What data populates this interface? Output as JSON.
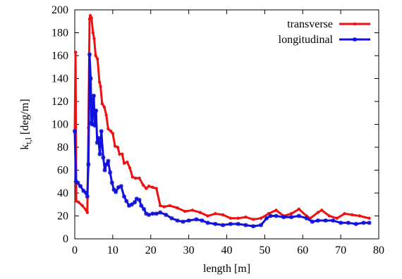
{
  "chart_data": {
    "type": "line",
    "title": "",
    "xlabel": "length [m]",
    "ylabel": "k",
    "ylabel_subscript": "t,l",
    "ylabel_unit": " [deg/m]",
    "xlim": [
      0,
      80
    ],
    "ylim": [
      0,
      200
    ],
    "xticks": [
      0,
      10,
      20,
      30,
      40,
      50,
      60,
      70,
      80
    ],
    "yticks": [
      0,
      20,
      40,
      60,
      80,
      100,
      120,
      140,
      160,
      180,
      200
    ],
    "grid": false,
    "legend_position": "top-right",
    "series": [
      {
        "name": "transverse",
        "color": "#ee1111",
        "marker": "dot",
        "points": [
          [
            0.0,
            94
          ],
          [
            0.2,
            163
          ],
          [
            0.4,
            33
          ],
          [
            1.0,
            32
          ],
          [
            2.0,
            29
          ],
          [
            3.0,
            25
          ],
          [
            3.3,
            23
          ],
          [
            3.6,
            97
          ],
          [
            3.9,
            192
          ],
          [
            4.1,
            195
          ],
          [
            4.4,
            193
          ],
          [
            4.8,
            180
          ],
          [
            5.1,
            175
          ],
          [
            5.5,
            160
          ],
          [
            6.0,
            157
          ],
          [
            6.5,
            137
          ],
          [
            6.8,
            133
          ],
          [
            7.2,
            118
          ],
          [
            7.8,
            115
          ],
          [
            8.3,
            108
          ],
          [
            8.8,
            96
          ],
          [
            9.5,
            94
          ],
          [
            10.0,
            92
          ],
          [
            10.6,
            81
          ],
          [
            11.3,
            80
          ],
          [
            11.8,
            74
          ],
          [
            12.5,
            74
          ],
          [
            13.0,
            66
          ],
          [
            13.8,
            67
          ],
          [
            14.5,
            62
          ],
          [
            15.2,
            54
          ],
          [
            16.0,
            53
          ],
          [
            17.0,
            53
          ],
          [
            18.0,
            47
          ],
          [
            18.8,
            44
          ],
          [
            19.5,
            46
          ],
          [
            20.5,
            45
          ],
          [
            21.5,
            44
          ],
          [
            22.5,
            29
          ],
          [
            23.5,
            28
          ],
          [
            25.0,
            29
          ],
          [
            27.0,
            27
          ],
          [
            29.0,
            24
          ],
          [
            31.0,
            25
          ],
          [
            33.0,
            23
          ],
          [
            35.0,
            20
          ],
          [
            37.0,
            22
          ],
          [
            39.0,
            21
          ],
          [
            41.0,
            18
          ],
          [
            43.0,
            18
          ],
          [
            45.0,
            19
          ],
          [
            47.0,
            17
          ],
          [
            49.0,
            18
          ],
          [
            51.0,
            22
          ],
          [
            53.0,
            25
          ],
          [
            55.0,
            20
          ],
          [
            57.0,
            22
          ],
          [
            59.0,
            26
          ],
          [
            61.0,
            20
          ],
          [
            62.0,
            18
          ],
          [
            64.0,
            23
          ],
          [
            65.0,
            25
          ],
          [
            67.0,
            20
          ],
          [
            69.0,
            18
          ],
          [
            71.0,
            22
          ],
          [
            73.0,
            21
          ],
          [
            75.0,
            20
          ],
          [
            77.5,
            18
          ]
        ]
      },
      {
        "name": "longitudinal",
        "color": "#1111dd",
        "marker": "star",
        "points": [
          [
            0.0,
            94
          ],
          [
            0.3,
            50
          ],
          [
            0.8,
            49
          ],
          [
            1.5,
            46
          ],
          [
            2.3,
            42
          ],
          [
            3.0,
            40
          ],
          [
            3.3,
            37
          ],
          [
            3.6,
            65
          ],
          [
            3.9,
            161
          ],
          [
            4.2,
            140
          ],
          [
            4.4,
            101
          ],
          [
            4.6,
            100
          ],
          [
            4.8,
            122
          ],
          [
            5.0,
            125
          ],
          [
            5.3,
            99
          ],
          [
            5.6,
            112
          ],
          [
            5.9,
            84
          ],
          [
            6.2,
            88
          ],
          [
            6.6,
            74
          ],
          [
            7.0,
            94
          ],
          [
            7.5,
            71
          ],
          [
            7.9,
            60
          ],
          [
            8.3,
            65
          ],
          [
            8.8,
            68
          ],
          [
            9.3,
            58
          ],
          [
            9.8,
            49
          ],
          [
            10.3,
            43
          ],
          [
            10.8,
            41
          ],
          [
            11.5,
            45
          ],
          [
            12.2,
            46
          ],
          [
            13.0,
            37
          ],
          [
            13.6,
            33
          ],
          [
            14.3,
            29
          ],
          [
            15.0,
            30
          ],
          [
            15.8,
            32
          ],
          [
            16.3,
            35
          ],
          [
            17.0,
            34
          ],
          [
            17.5,
            29
          ],
          [
            18.2,
            26
          ],
          [
            18.8,
            22
          ],
          [
            19.5,
            21
          ],
          [
            20.5,
            22
          ],
          [
            21.5,
            22
          ],
          [
            22.5,
            23
          ],
          [
            24.0,
            21
          ],
          [
            25.5,
            18
          ],
          [
            27.0,
            16
          ],
          [
            28.5,
            15
          ],
          [
            30.0,
            16
          ],
          [
            32.0,
            17
          ],
          [
            33.5,
            16
          ],
          [
            35.0,
            14
          ],
          [
            37.0,
            13
          ],
          [
            39.0,
            12
          ],
          [
            41.0,
            13
          ],
          [
            43.0,
            13
          ],
          [
            45.0,
            12
          ],
          [
            47.0,
            11
          ],
          [
            49.0,
            12
          ],
          [
            50.5,
            18
          ],
          [
            51.5,
            20
          ],
          [
            53.0,
            20
          ],
          [
            55.0,
            19
          ],
          [
            57.0,
            19
          ],
          [
            59.0,
            20
          ],
          [
            61.0,
            18
          ],
          [
            62.5,
            15
          ],
          [
            64.0,
            16
          ],
          [
            66.0,
            16
          ],
          [
            68.0,
            16
          ],
          [
            70.0,
            14
          ],
          [
            72.0,
            14
          ],
          [
            74.0,
            13
          ],
          [
            76.0,
            14
          ],
          [
            77.5,
            14
          ]
        ]
      }
    ]
  }
}
